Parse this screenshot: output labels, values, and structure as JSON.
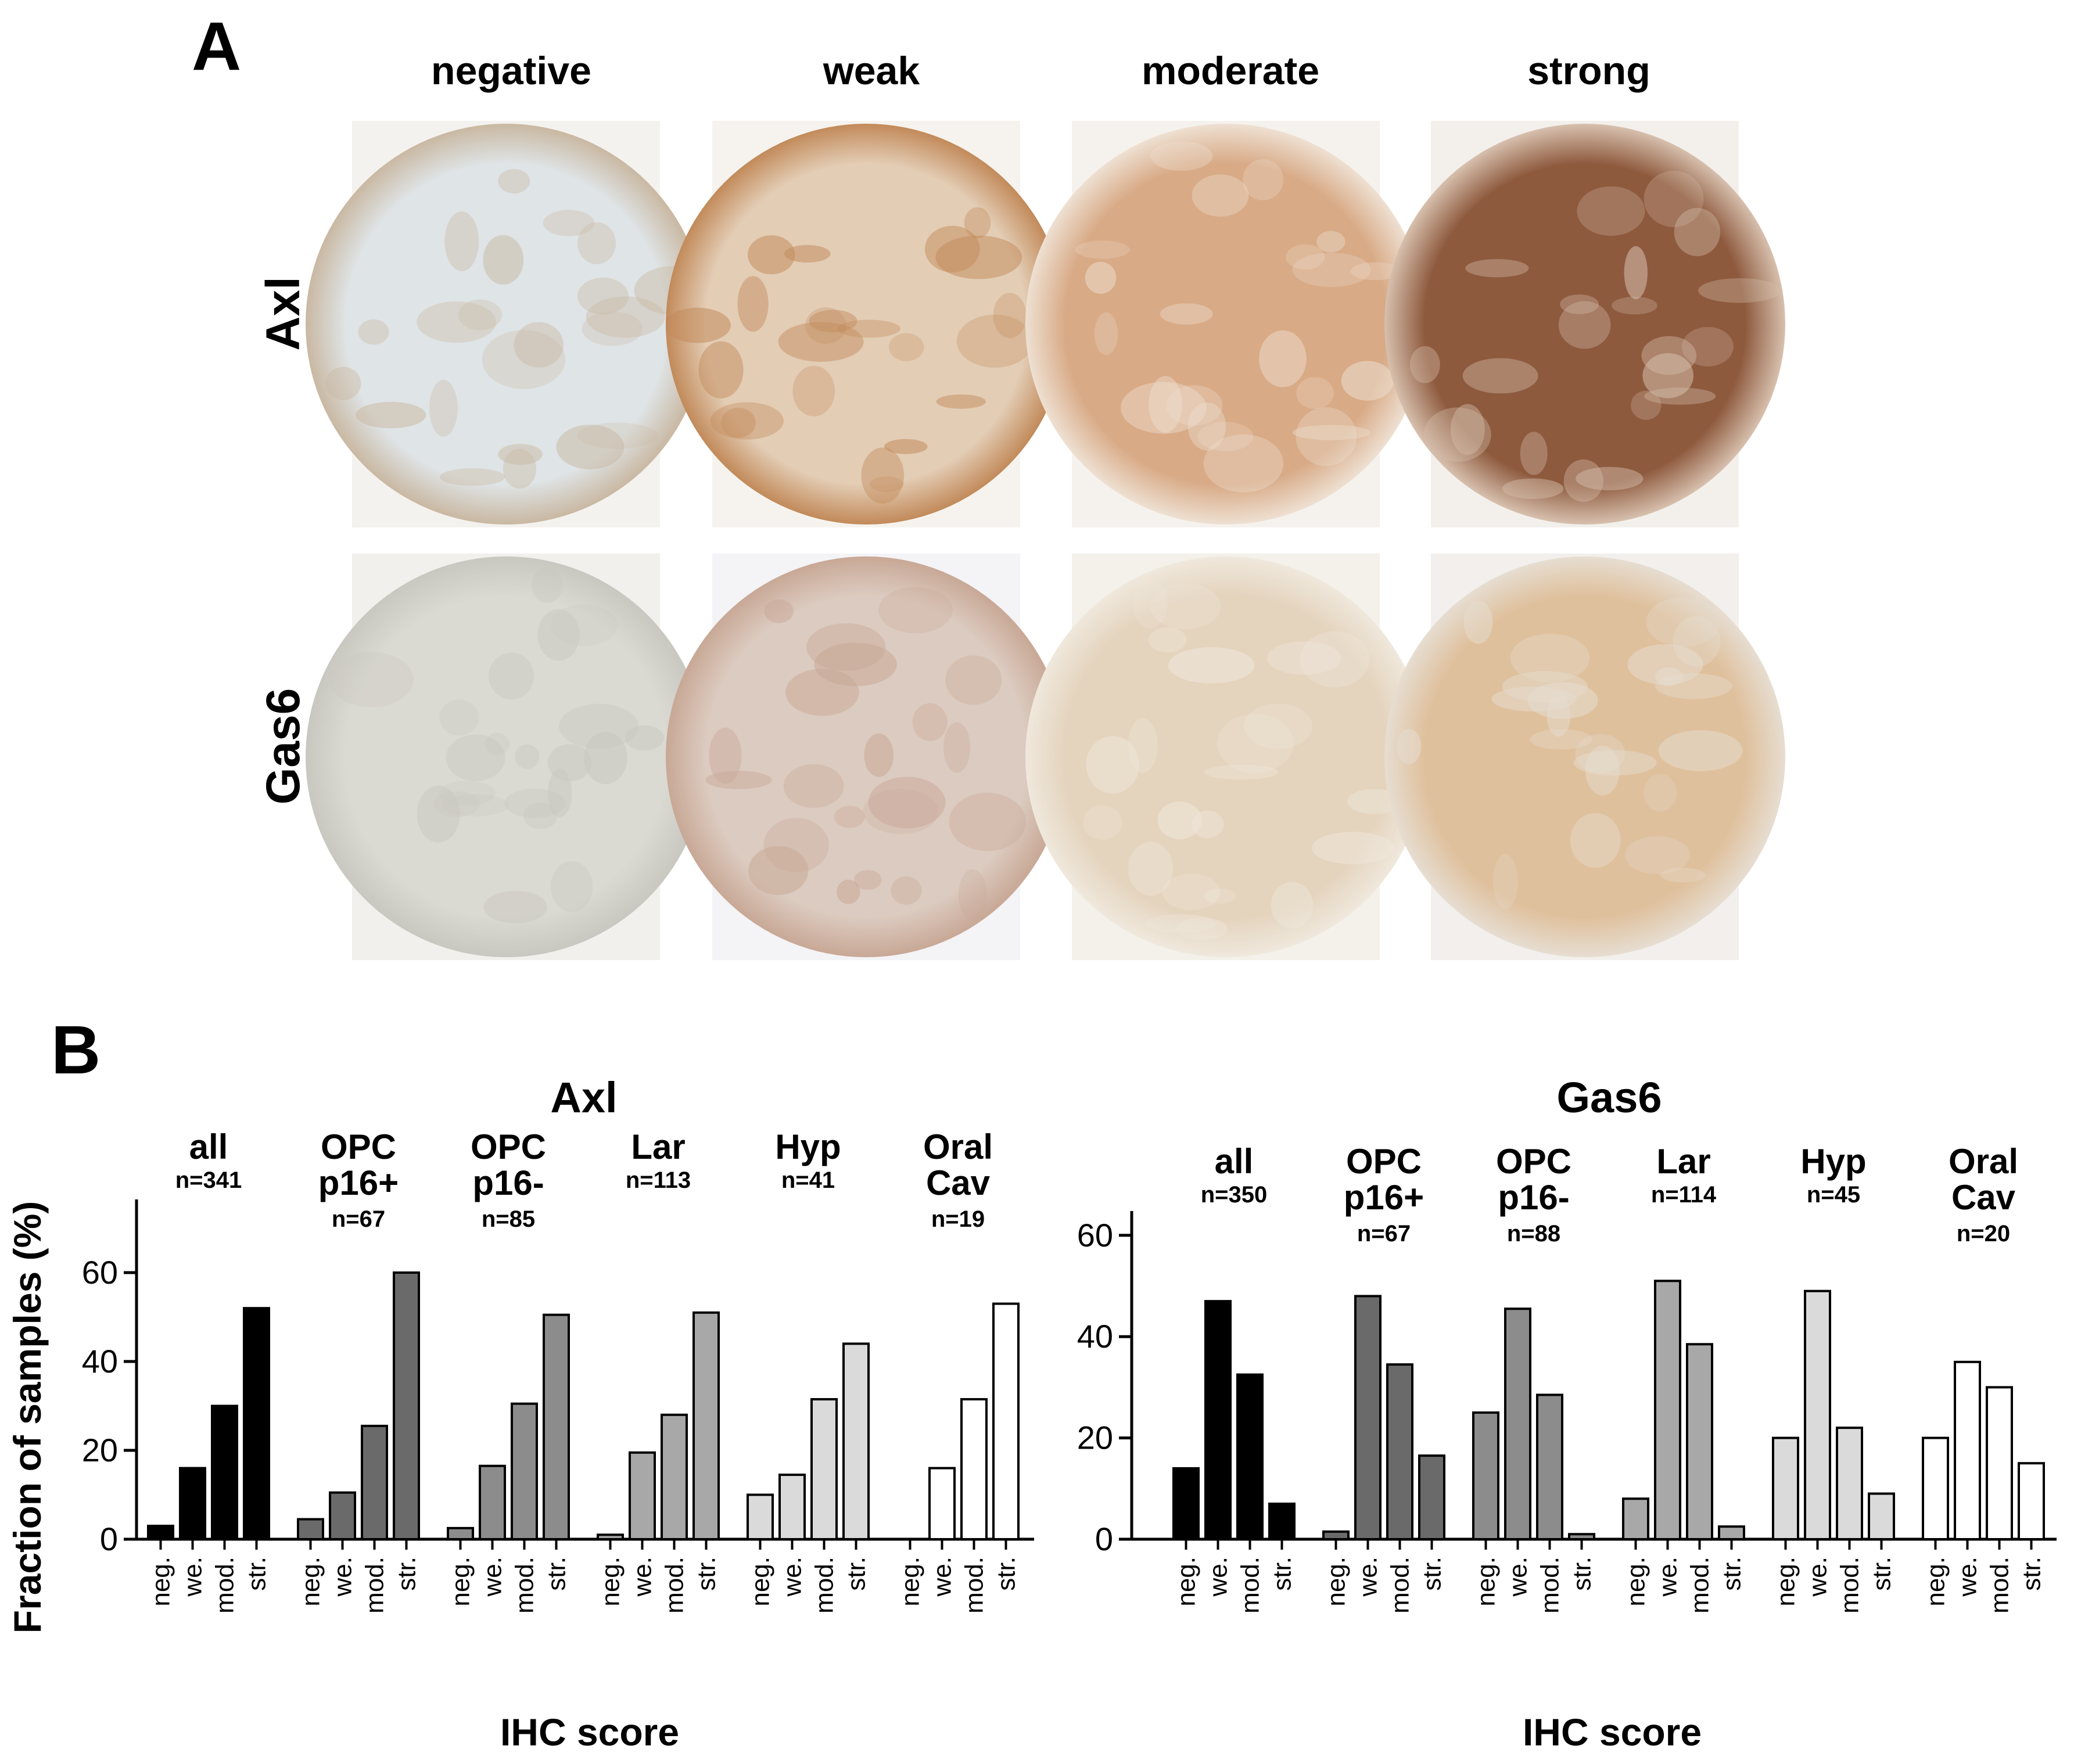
{
  "panel_a": {
    "letter": "A",
    "columns": [
      "negative",
      "weak",
      "moderate",
      "strong"
    ],
    "rows": [
      "Axl",
      "Gas6"
    ],
    "tissue_colors": {
      "Axl": [
        {
          "bg": "#f4f2ee",
          "core": "#dfe4e6",
          "accent": "#c9b8a2"
        },
        {
          "bg": "#f6f3ee",
          "core": "#e3cdb5",
          "accent": "#c28a5a"
        },
        {
          "bg": "#f5f2ee",
          "core": "#d8aa86",
          "accent": "#eee0d2"
        },
        {
          "bg": "#f3f0ec",
          "core": "#8e5a3e",
          "accent": "#d7c0ae"
        }
      ],
      "Gas6": [
        {
          "bg": "#f1f0ec",
          "core": "#dad9d2",
          "accent": "#c9c8c0"
        },
        {
          "bg": "#f4f3f6",
          "core": "#dccbc0",
          "accent": "#c8a896"
        },
        {
          "bg": "#f4f0ea",
          "core": "#e4d3bd",
          "accent": "#efe8dc"
        },
        {
          "bg": "#f2efec",
          "core": "#dfc09c",
          "accent": "#e6ddd1"
        }
      ]
    }
  },
  "panel_b": {
    "letter": "B",
    "fill_colors": [
      "#000000",
      "#6a6a6a",
      "#8c8c8c",
      "#a8a8a8",
      "#dadada",
      "#ffffff"
    ],
    "xlabel": "IHC score",
    "ylabel": "Fraction of samples (%)",
    "categories": [
      "neg.",
      "we.",
      "mod.",
      "str."
    ]
  },
  "chart_data": [
    {
      "type": "bar",
      "title": "Axl",
      "ylabel": "Fraction of samples (%)",
      "xlabel": "IHC score",
      "ylim": [
        0,
        70
      ],
      "yticks": [
        "0",
        "20",
        "40",
        "60"
      ],
      "categories": [
        "neg.",
        "we.",
        "mod.",
        "str."
      ],
      "groups": [
        {
          "label": [
            "all"
          ],
          "n": "n=341",
          "values": [
            3,
            16,
            30,
            52
          ]
        },
        {
          "label": [
            "OPC",
            "p16+"
          ],
          "n": "n=67",
          "values": [
            4.5,
            10.5,
            25.5,
            60
          ]
        },
        {
          "label": [
            "OPC",
            "p16-"
          ],
          "n": "n=85",
          "values": [
            2.5,
            16.5,
            30.5,
            50.5
          ]
        },
        {
          "label": [
            "Lar"
          ],
          "n": "n=113",
          "values": [
            1,
            19.5,
            28,
            51
          ]
        },
        {
          "label": [
            "Hyp"
          ],
          "n": "n=41",
          "values": [
            10,
            14.5,
            31.5,
            44
          ]
        },
        {
          "label": [
            "Oral",
            "Cav"
          ],
          "n": "n=19",
          "values": [
            0,
            16,
            31.5,
            53
          ]
        }
      ]
    },
    {
      "type": "bar",
      "title": "Gas6",
      "ylabel": "",
      "xlabel": "IHC score",
      "ylim": [
        0,
        65
      ],
      "yticks": [
        "0",
        "20",
        "40",
        "60"
      ],
      "categories": [
        "neg.",
        "we.",
        "mod.",
        "str."
      ],
      "groups": [
        {
          "label": [
            "all"
          ],
          "n": "n=350",
          "values": [
            14,
            47,
            32.5,
            7
          ]
        },
        {
          "label": [
            "OPC",
            "p16+"
          ],
          "n": "n=67",
          "values": [
            1.5,
            48,
            34.5,
            16.5
          ]
        },
        {
          "label": [
            "OPC",
            "p16-"
          ],
          "n": "n=88",
          "values": [
            25,
            45.5,
            28.5,
            1
          ]
        },
        {
          "label": [
            "Lar"
          ],
          "n": "n=114",
          "values": [
            8,
            51,
            38.5,
            2.5
          ]
        },
        {
          "label": [
            "Hyp"
          ],
          "n": "n=45",
          "values": [
            20,
            49,
            22,
            9
          ]
        },
        {
          "label": [
            "Oral",
            "Cav"
          ],
          "n": "n=20",
          "values": [
            20,
            35,
            30,
            15
          ]
        }
      ]
    }
  ]
}
